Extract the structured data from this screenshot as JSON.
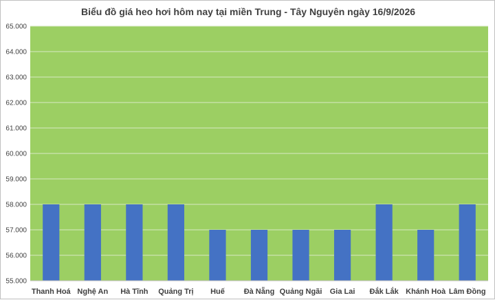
{
  "chart_data": {
    "type": "bar",
    "title": "Biểu đồ giá heo hơi hôm nay tại miền Trung - Tây Nguyên ngày 16/9/2026",
    "xlabel": "",
    "ylabel": "",
    "categories": [
      "Thanh Hoá",
      "Nghệ An",
      "Hà Tĩnh",
      "Quảng Trị",
      "Huế",
      "Đà Nẵng",
      "Quảng Ngãi",
      "Gia Lai",
      "Đắk Lắk",
      "Khánh Hoà",
      "Lâm Đồng"
    ],
    "values": [
      58000,
      58000,
      58000,
      58000,
      57000,
      57000,
      57000,
      57000,
      58000,
      57000,
      58000
    ],
    "ylim": [
      55000,
      65000
    ],
    "yticks": [
      55000,
      56000,
      57000,
      58000,
      59000,
      60000,
      61000,
      62000,
      63000,
      64000,
      65000
    ],
    "ytick_labels": [
      "55.000",
      "56.000",
      "57.000",
      "58.000",
      "59.000",
      "60.000",
      "61.000",
      "62.000",
      "63.000",
      "64.000",
      "65.000"
    ],
    "grid": true,
    "legend": "none",
    "colors": {
      "bar": "#4472c4",
      "plot_background": "#9ccf63",
      "gridline": "#d9e8c4",
      "axis": "#bfbfbf"
    }
  }
}
